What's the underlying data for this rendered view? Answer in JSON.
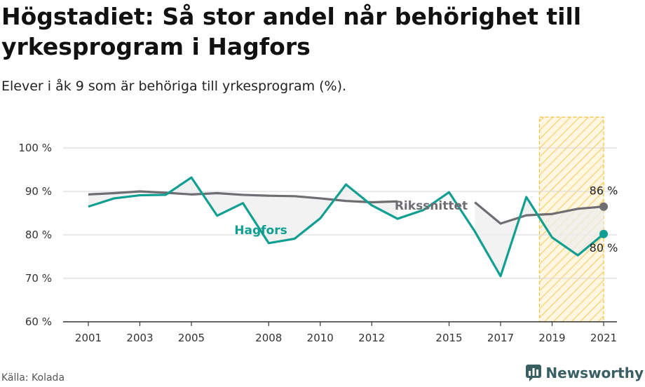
{
  "title": "Högstadiet: Så stor andel når behörighet till yrkesprogram i Hagfors",
  "subtitle": "Elever i åk 9 som är behöriga till yrkesprogram (%).",
  "source": "Källa: Kolada",
  "brand": {
    "name": "Newsworthy",
    "icon": "newsworthy-logo-icon"
  },
  "colors": {
    "hagfors": "#119f92",
    "riket": "#6e6d72",
    "highlight": "#f5c03a",
    "fill": "#eeeeee",
    "grid": "#d5d5d5"
  },
  "chart_data": {
    "type": "line",
    "title": "Högstadiet: Så stor andel når behörighet till yrkesprogram i Hagfors",
    "subtitle": "Elever i åk 9 som är behöriga till yrkesprogram (%).",
    "x_ticks": [
      2001,
      2003,
      2005,
      2008,
      2010,
      2012,
      2015,
      2017,
      2019,
      2021
    ],
    "xlim": [
      2001,
      2021
    ],
    "y_ticks": [
      60,
      70,
      80,
      90,
      100
    ],
    "y_tick_labels": [
      "60 %",
      "70 %",
      "80 %",
      "90 %",
      "100 %"
    ],
    "ylim": [
      60,
      100
    ],
    "grid": true,
    "highlight_range": [
      2019,
      2021
    ],
    "x": [
      2001,
      2002,
      2003,
      2004,
      2005,
      2006,
      2007,
      2008,
      2009,
      2010,
      2011,
      2012,
      2013,
      2014,
      2015,
      2016,
      2017,
      2018,
      2019,
      2020,
      2021
    ],
    "series": [
      {
        "name": "Hagfors",
        "label": "Hagfors",
        "values": [
          86.5,
          88.4,
          89.1,
          89.2,
          93.2,
          84.4,
          87.3,
          78.1,
          79.1,
          83.8,
          91.6,
          86.8,
          83.7,
          85.7,
          89.8,
          80.8,
          70.5,
          88.7,
          79.4,
          75.3,
          80.2
        ],
        "end_label": "80 %"
      },
      {
        "name": "Rikssnittet",
        "label": "Rikssnittet",
        "values": [
          89.3,
          89.6,
          90.0,
          89.7,
          89.3,
          89.6,
          89.2,
          89.0,
          88.9,
          88.4,
          87.8,
          87.5,
          87.7,
          null,
          null,
          87.5,
          82.6,
          84.5,
          84.8,
          86.0,
          86.5
        ],
        "end_label": "86 %"
      }
    ]
  }
}
